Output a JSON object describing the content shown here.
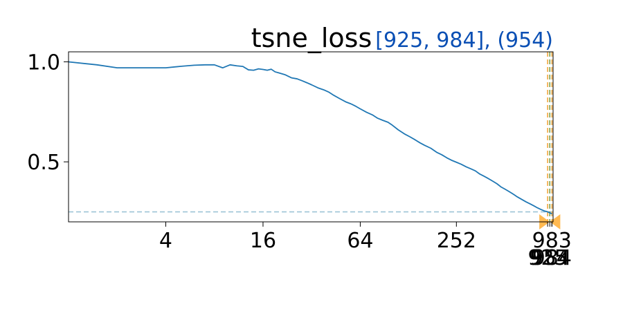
{
  "chart_data": {
    "type": "line",
    "title": "tsne_loss",
    "annotation": "[925, 984], (954)",
    "xlabel": "",
    "ylabel": "",
    "xscale": "log2",
    "xlim": [
      1,
      1000
    ],
    "ylim": [
      0.2,
      1.05
    ],
    "x_ticks": [
      4,
      16,
      64,
      252,
      983
    ],
    "x_tick_labels": [
      "4",
      "16",
      "64",
      "252",
      "983"
    ],
    "extra_x_ticks": [
      925,
      954,
      984
    ],
    "extra_x_tick_labels": [
      "925",
      "954",
      "984"
    ],
    "y_ticks": [
      0.5,
      1.0
    ],
    "y_tick_labels": [
      "0.5",
      "1.0"
    ],
    "hline": 0.25,
    "vlines": [
      925,
      954,
      984
    ],
    "grid": false,
    "colors": {
      "line": "#1f77b4",
      "hline": "#9cc3d6",
      "vline_orange": "#f2a63a",
      "vline_green": "#7aa04a",
      "marker": "#ffa726",
      "annotation": "#0a4fb4"
    },
    "series": [
      {
        "x": [
          1,
          1.5,
          2,
          3,
          4,
          5,
          6,
          7,
          8,
          9,
          10,
          11,
          12,
          13,
          14,
          15,
          16,
          17,
          18,
          19,
          20,
          22,
          24,
          26,
          28,
          30,
          32,
          35,
          38,
          41,
          44,
          48,
          52,
          56,
          60,
          64,
          70,
          76,
          82,
          88,
          95,
          100,
          110,
          120,
          130,
          140,
          150,
          160,
          175,
          190,
          205,
          220,
          235,
          252,
          270,
          290,
          310,
          330,
          350,
          370,
          390,
          410,
          430,
          450,
          475,
          500,
          525,
          550,
          575,
          600,
          640,
          680,
          720,
          760,
          800,
          840,
          880,
          925,
          954,
          984
        ],
        "y": [
          1.0,
          0.985,
          0.97,
          0.97,
          0.97,
          0.978,
          0.983,
          0.985,
          0.985,
          0.97,
          0.985,
          0.98,
          0.977,
          0.96,
          0.958,
          0.965,
          0.962,
          0.958,
          0.963,
          0.95,
          0.945,
          0.935,
          0.92,
          0.915,
          0.905,
          0.895,
          0.885,
          0.87,
          0.86,
          0.848,
          0.832,
          0.815,
          0.8,
          0.79,
          0.778,
          0.765,
          0.748,
          0.735,
          0.718,
          0.708,
          0.698,
          0.686,
          0.66,
          0.64,
          0.625,
          0.61,
          0.595,
          0.583,
          0.568,
          0.548,
          0.535,
          0.52,
          0.508,
          0.498,
          0.488,
          0.475,
          0.465,
          0.455,
          0.44,
          0.43,
          0.42,
          0.41,
          0.4,
          0.39,
          0.375,
          0.365,
          0.355,
          0.345,
          0.335,
          0.325,
          0.312,
          0.3,
          0.29,
          0.28,
          0.27,
          0.262,
          0.255,
          0.25,
          0.245,
          0.24
        ]
      }
    ]
  }
}
